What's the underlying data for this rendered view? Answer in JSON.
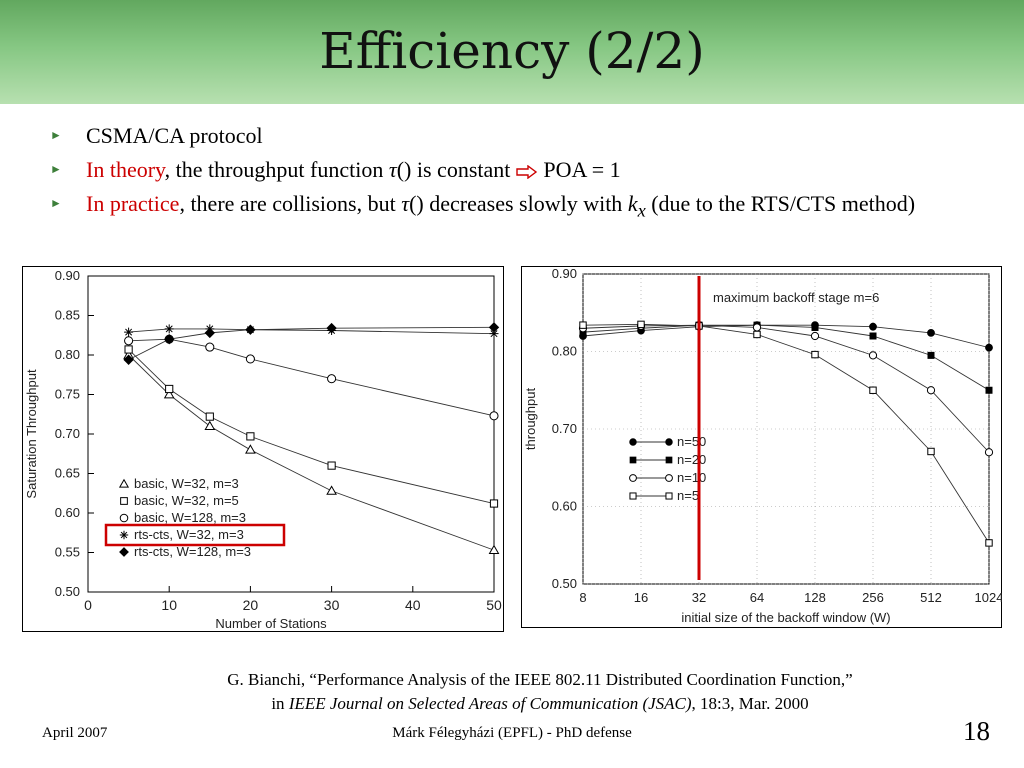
{
  "slide": {
    "title": "Efficiency (2/2)",
    "bullets": [
      {
        "plain": "CSMA/CA protocol"
      },
      {
        "red": "In theory",
        "text1": ", the throughput function ",
        "tau": "τ",
        "text2": "() is constant ",
        "after": " POA = 1"
      },
      {
        "red": "In practice",
        "text1": ", there are collisions, but ",
        "tau": "τ",
        "text2": "() decreases slowly with ",
        "k": "k",
        "ksub": "x",
        "text3": " (due to the RTS/CTS method)"
      }
    ],
    "caption_line1": "G. Bianchi, “Performance Analysis of the IEEE 802.11 Distributed Coordination Function,”",
    "caption_in": "in ",
    "caption_journal": "IEEE Journal on Selected Areas of Communication (JSAC)",
    "caption_rest": ", 18:3, Mar. 2000",
    "footer_left": "April 2007",
    "footer_center": "Márk Félegyházi (EPFL) - PhD defense",
    "page_number": "18",
    "colors": {
      "accent_red": "#cc0000",
      "title_bar": "#86c783",
      "bullet_arrow": "#3d7f3a"
    }
  },
  "chart_data": [
    {
      "type": "line",
      "xlabel": "Number of Stations",
      "ylabel": "Saturation Throughput",
      "xlim": [
        0,
        50
      ],
      "ylim": [
        0.5,
        0.9
      ],
      "xticks": [
        "0",
        "10",
        "20",
        "30",
        "40",
        "50"
      ],
      "yticks": [
        "0.50",
        "0.55",
        "0.60",
        "0.65",
        "0.70",
        "0.75",
        "0.80",
        "0.85",
        "0.90"
      ],
      "x": [
        5,
        10,
        15,
        20,
        30,
        50
      ],
      "legend_position": "bottom-left",
      "highlighted_series": "rts-cts, W=32, m=3",
      "series": [
        {
          "name": "basic, W=32, m=3",
          "marker": "triangle-open",
          "values": [
            0.8,
            0.75,
            0.71,
            0.68,
            0.628,
            0.553
          ]
        },
        {
          "name": "basic, W=32, m=5",
          "marker": "square-open",
          "values": [
            0.807,
            0.757,
            0.722,
            0.697,
            0.66,
            0.612
          ]
        },
        {
          "name": "basic, W=128, m=3",
          "marker": "circle-open",
          "values": [
            0.818,
            0.82,
            0.81,
            0.795,
            0.77,
            0.723
          ]
        },
        {
          "name": "rts-cts, W=32, m=3",
          "marker": "star",
          "values": [
            0.829,
            0.833,
            0.833,
            0.832,
            0.831,
            0.827
          ]
        },
        {
          "name": "rts-cts, W=128, m=3",
          "marker": "diamond-filled",
          "values": [
            0.794,
            0.82,
            0.828,
            0.832,
            0.834,
            0.835
          ]
        }
      ]
    },
    {
      "type": "line",
      "annotation": "maximum backoff stage m=6",
      "xlabel": "initial size of the backoff window (W)",
      "ylabel": "throughput",
      "categories": [
        "8",
        "16",
        "32",
        "64",
        "128",
        "256",
        "512",
        "1024"
      ],
      "ylim": [
        0.5,
        0.9
      ],
      "yticks": [
        "0.50",
        "0.60",
        "0.70",
        "0.80",
        "0.90"
      ],
      "legend_position": "left-middle",
      "highlight_line_x": "32",
      "series": [
        {
          "name": "n=50",
          "marker": "circle-filled",
          "values": [
            0.82,
            0.827,
            0.832,
            0.834,
            0.834,
            0.832,
            0.824,
            0.805
          ]
        },
        {
          "name": "n=20",
          "marker": "square-filled",
          "values": [
            0.825,
            0.83,
            0.834,
            0.834,
            0.831,
            0.82,
            0.795,
            0.75
          ]
        },
        {
          "name": "n=10",
          "marker": "circle-open",
          "values": [
            0.83,
            0.833,
            0.834,
            0.831,
            0.82,
            0.795,
            0.75,
            0.67
          ]
        },
        {
          "name": "n=5",
          "marker": "square-open",
          "values": [
            0.834,
            0.835,
            0.833,
            0.822,
            0.796,
            0.75,
            0.671,
            0.553
          ]
        }
      ]
    }
  ]
}
